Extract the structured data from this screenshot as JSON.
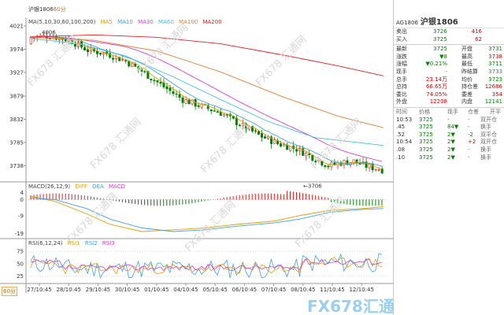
{
  "chart": {
    "symbol_label": "沪银1806",
    "period_suffix": "60分",
    "ma_legend": [
      {
        "text": "MA(5,10,30,60,100,200)",
        "color": "#444444"
      },
      {
        "text": "MA5",
        "color": "#e0a000"
      },
      {
        "text": "MA10",
        "color": "#40a0e0"
      },
      {
        "text": "MA30",
        "color": "#d040d0"
      },
      {
        "text": "MA60",
        "color": "#40c0e0"
      },
      {
        "text": "MA100",
        "color": "#e08030"
      },
      {
        "text": "MA200",
        "color": "#e02020"
      }
    ],
    "price_axis": [
      "4021",
      "3974",
      "3927",
      "3879",
      "3832",
      "3785",
      "3738"
    ],
    "macd_axis": [
      "4",
      "0",
      "-9",
      "-19"
    ],
    "rsi_axis": [
      "75",
      "50",
      "25"
    ],
    "high_label": "4006",
    "low_label": "3706",
    "macd_legend": [
      {
        "text": "MACD(26,12,9)",
        "color": "#444444"
      },
      {
        "text": "DIFF",
        "color": "#e0a000"
      },
      {
        "text": "DEA",
        "color": "#40a0e0"
      },
      {
        "text": "MACD",
        "color": "#d040d0"
      }
    ],
    "rsi_legend": [
      {
        "text": "RSI(6,12,24)",
        "color": "#444444"
      },
      {
        "text": "RSI1",
        "color": "#e0a000"
      },
      {
        "text": "RSI2",
        "color": "#40a0e0"
      },
      {
        "text": "RSI3",
        "color": "#d040d0"
      }
    ],
    "x_labels": [
      "27/10:45",
      "28/10:45",
      "29/10:45",
      "30/10:45",
      "01/10:45",
      "04/10:45",
      "05/10:45",
      "06/10:45",
      "07/10:45",
      "08/10:45",
      "11/10:45",
      "12/10:45"
    ],
    "period_box": "60分",
    "watermark_text": "FX678 汇通网",
    "brand_logo_text": "FX678汇通网"
  },
  "chart_data": {
    "type": "candlestick",
    "title": "沪银1806",
    "period": "60分",
    "price_range": [
      3710,
      4021
    ],
    "ma_settings": [
      5,
      10,
      30,
      60,
      100,
      200
    ],
    "annotations": {
      "high": 4006,
      "low": 3706
    }
  },
  "panel": {
    "code": "AG1806",
    "name": "沪银1806",
    "quote_rows": [
      {
        "l1": "卖出",
        "v1": "3726",
        "v1c": "green",
        "l2": "",
        "v2": "416",
        "v2c": "red"
      },
      {
        "l1": "买入",
        "v1": "3725",
        "v1c": "green",
        "l2": "",
        "v2": "62",
        "v2c": "red"
      }
    ],
    "stat_rows": [
      {
        "l1": "最新",
        "v1": "3725",
        "v1c": "green",
        "l2": "开盘",
        "v2": "3731",
        "v2c": "green"
      },
      {
        "l1": "涨跌",
        "v1": "▼8",
        "v1c": "green",
        "l2": "最高",
        "v2": "3738",
        "v2c": "red"
      },
      {
        "l1": "涨幅",
        "v1": "▼0.21%",
        "v1c": "green",
        "l2": "最低",
        "v2": "3711",
        "v2c": "green"
      },
      {
        "l1": "现手",
        "v1": "-",
        "v1c": "gray",
        "l2": "昨结算",
        "v2": "3733",
        "v2c": "gray"
      },
      {
        "l1": "总手",
        "v1": "23.14万",
        "v1c": "red",
        "l2": "均价",
        "v2": "3723",
        "v2c": "green"
      },
      {
        "l1": "总持",
        "v1": "66.65万",
        "v1c": "red",
        "l2": "持仓差",
        "v2": "12686",
        "v2c": "red"
      },
      {
        "l1": "委比",
        "v1": "74.05%",
        "v1c": "red",
        "l2": "委差",
        "v2": "354",
        "v2c": "red"
      },
      {
        "l1": "外盘",
        "v1": "12208",
        "v1c": "red",
        "l2": "内盘",
        "v2": "12141",
        "v2c": "green"
      }
    ],
    "tick_header": [
      "时间",
      "价格",
      "现手",
      "仓差",
      "开平"
    ],
    "ticks": [
      {
        "time": "10:53",
        "price": "3725",
        "vol": "-",
        "diff": "-",
        "type": "双开仓",
        "vcolor": "gray",
        "tcolor": "gray"
      },
      {
        "time": ".45",
        "price": "3725",
        "vol": "84▼",
        "diff": "-",
        "type": "换手",
        "vcolor": "green",
        "tcolor": "gray"
      },
      {
        "time": ".52",
        "price": "3725",
        "vol": "2▼",
        "diff": "-2",
        "type": "双平仓",
        "vcolor": "green",
        "tcolor": "gray"
      },
      {
        "time": "10:54",
        "price": "3725",
        "vol": "2▼",
        "diff": "+2",
        "type": "双开仓",
        "vcolor": "green",
        "tcolor": "gray"
      },
      {
        "time": ".08",
        "price": "3725",
        "vol": "2▼",
        "diff": "-",
        "type": "换手",
        "vcolor": "green",
        "tcolor": "gray"
      },
      {
        "time": ".10",
        "price": "3725",
        "vol": "2▼",
        "diff": "-",
        "type": "换手",
        "vcolor": "green",
        "tcolor": "gray"
      }
    ]
  }
}
